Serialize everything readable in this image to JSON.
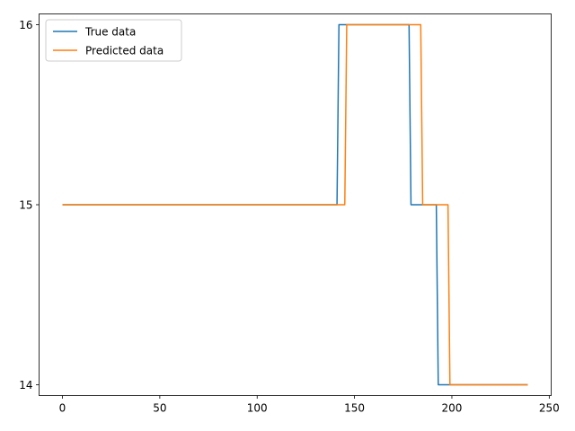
{
  "chart_data": {
    "type": "line",
    "title": "",
    "xlabel": "",
    "ylabel": "",
    "xlim": [
      -12,
      251
    ],
    "ylim": [
      13.94,
      16.06
    ],
    "xticks": [
      0,
      50,
      100,
      150,
      200,
      250
    ],
    "yticks": [
      14,
      15,
      16
    ],
    "grid": false,
    "legend_position": "top-left",
    "series": [
      {
        "name": "True data",
        "color": "#1f77b4",
        "x": [
          0,
          141,
          142,
          178,
          179,
          192,
          193,
          239
        ],
        "y": [
          15,
          15,
          16,
          16,
          15,
          15,
          14,
          14
        ]
      },
      {
        "name": "Predicted data",
        "color": "#ff7f0e",
        "x": [
          0,
          145,
          146,
          184,
          185,
          198,
          199,
          239
        ],
        "y": [
          15,
          15,
          16,
          16,
          15,
          15,
          14,
          14
        ]
      }
    ]
  }
}
